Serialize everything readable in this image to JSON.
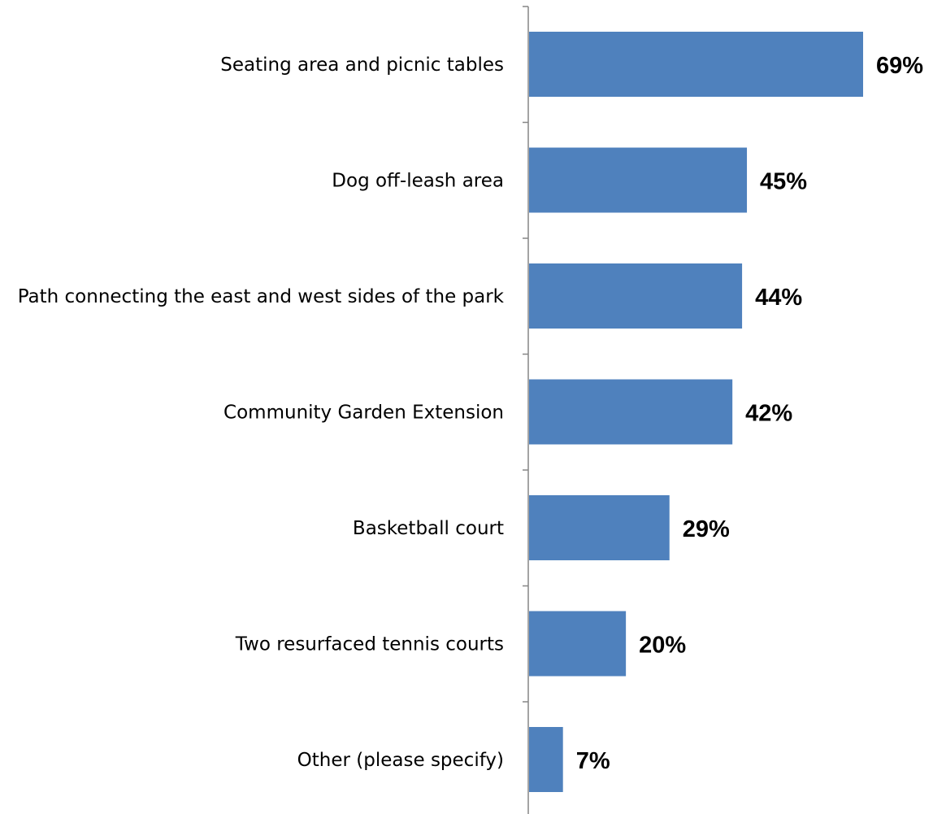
{
  "chart_data": {
    "type": "bar",
    "orientation": "horizontal",
    "title": "",
    "xlabel": "",
    "ylabel": "",
    "categories": [
      "Seating area and picnic tables",
      "Dog off-leash area",
      "Path connecting the east and west sides of the park",
      "Community Garden Extension",
      "Basketball court",
      "Two resurfaced tennis courts",
      "Other (please specify)"
    ],
    "values": [
      69,
      45,
      44,
      42,
      29,
      20,
      7
    ],
    "value_labels": [
      "69%",
      "45%",
      "44%",
      "42%",
      "29%",
      "20%",
      "7%"
    ],
    "xlim": [
      0,
      70
    ],
    "grid": false,
    "legend": "none",
    "colors": {
      "bar": "#4f81bd",
      "axis": "#868686",
      "text": "#000000"
    }
  }
}
